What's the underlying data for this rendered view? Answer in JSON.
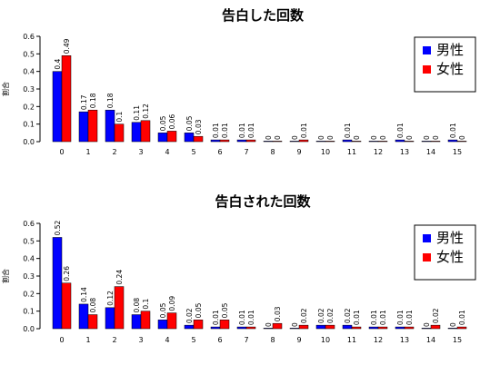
{
  "chart_data": [
    {
      "type": "bar",
      "title": "告白した回数",
      "ylabel": "割合",
      "xlabel": "",
      "ylim": [
        0,
        0.6
      ],
      "yticks": [
        "0.0",
        "0.1",
        "0.2",
        "0.3",
        "0.4",
        "0.5",
        "0.6"
      ],
      "categories": [
        "0",
        "1",
        "2",
        "3",
        "4",
        "5",
        "6",
        "7",
        "8",
        "9",
        "10",
        "11",
        "12",
        "13",
        "14",
        "15"
      ],
      "legend_position": "top-right",
      "grid": false,
      "series": [
        {
          "name": "男性",
          "color": "#0000ff",
          "values": [
            0.4,
            0.17,
            0.18,
            0.11,
            0.05,
            0.05,
            0.01,
            0.01,
            0,
            0,
            0,
            0.01,
            0,
            0.01,
            0,
            0.01
          ],
          "labels": [
            "0.4",
            "0.17",
            "0.18",
            "0.11",
            "0.05",
            "0.05",
            "0.01",
            "0.01",
            "0",
            "0",
            "0",
            "0.01",
            "0",
            "0.01",
            "0",
            "0.01"
          ]
        },
        {
          "name": "女性",
          "color": "#ff0000",
          "values": [
            0.49,
            0.18,
            0.1,
            0.12,
            0.06,
            0.03,
            0.01,
            0.01,
            0,
            0.01,
            0,
            0,
            0,
            0,
            0,
            0
          ],
          "labels": [
            "0.49",
            "0.18",
            "0.1",
            "0.12",
            "0.06",
            "0.03",
            "0.01",
            "0.01",
            "0",
            "0.01",
            "0",
            "0",
            "0",
            "0",
            "0",
            "0"
          ]
        }
      ]
    },
    {
      "type": "bar",
      "title": "告白された回数",
      "ylabel": "割合",
      "xlabel": "",
      "ylim": [
        0,
        0.6
      ],
      "yticks": [
        "0.0",
        "0.1",
        "0.2",
        "0.3",
        "0.4",
        "0.5",
        "0.6"
      ],
      "categories": [
        "0",
        "1",
        "2",
        "3",
        "4",
        "5",
        "6",
        "7",
        "8",
        "9",
        "10",
        "11",
        "12",
        "13",
        "14",
        "15"
      ],
      "legend_position": "top-right",
      "grid": false,
      "series": [
        {
          "name": "男性",
          "color": "#0000ff",
          "values": [
            0.52,
            0.14,
            0.12,
            0.08,
            0.05,
            0.02,
            0.01,
            0.01,
            0,
            0,
            0.02,
            0.02,
            0.01,
            0.01,
            0,
            0
          ],
          "labels": [
            "0.52",
            "0.14",
            "0.12",
            "0.08",
            "0.05",
            "0.02",
            "0.01",
            "0.01",
            "0",
            "0",
            "0.02",
            "0.02",
            "0.01",
            "0.01",
            "0",
            "0"
          ]
        },
        {
          "name": "女性",
          "color": "#ff0000",
          "values": [
            0.26,
            0.08,
            0.24,
            0.1,
            0.09,
            0.05,
            0.05,
            0.01,
            0.03,
            0.02,
            0.02,
            0.01,
            0.01,
            0.01,
            0.02,
            0.01
          ],
          "labels": [
            "0.26",
            "0.08",
            "0.24",
            "0.1",
            "0.09",
            "0.05",
            "0.05",
            "0.01",
            "0.03",
            "0.02",
            "0.02",
            "0.01",
            "0.01",
            "0.01",
            "0.02",
            "0.01"
          ]
        }
      ]
    }
  ]
}
